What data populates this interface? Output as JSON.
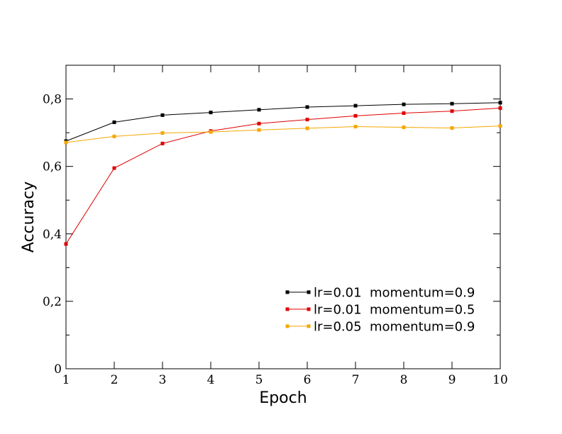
{
  "chart_data": {
    "type": "line",
    "xlabel": "Epoch",
    "ylabel": "Accuracy",
    "xlim": [
      1,
      10
    ],
    "ylim": [
      0,
      0.9
    ],
    "x_ticks": [
      1,
      2,
      3,
      4,
      5,
      6,
      7,
      8,
      9,
      10
    ],
    "x_tick_labels": [
      "1",
      "2",
      "3",
      "4",
      "5",
      "6",
      "7",
      "8",
      "9",
      "10"
    ],
    "y_ticks": [
      0,
      0.2,
      0.4,
      0.6,
      0.8
    ],
    "y_tick_labels": [
      "0",
      "0,2",
      "0,4",
      "0,6",
      "0,8"
    ],
    "grid": false,
    "legend_position": "bottom-right",
    "x": [
      1,
      2,
      3,
      4,
      5,
      6,
      7,
      8,
      9,
      10
    ],
    "series": [
      {
        "name": "lr=0.01  momentum=0.9",
        "color": "#000000",
        "values": [
          0.675,
          0.731,
          0.752,
          0.76,
          0.768,
          0.776,
          0.78,
          0.784,
          0.786,
          0.789
        ]
      },
      {
        "name": "lr=0.01  momentum=0.5",
        "color": "#e00000",
        "values": [
          0.37,
          0.595,
          0.668,
          0.705,
          0.727,
          0.739,
          0.75,
          0.758,
          0.764,
          0.773
        ]
      },
      {
        "name": "lr=0.05  momentum=0.9",
        "color": "#f5a700",
        "values": [
          0.671,
          0.689,
          0.699,
          0.702,
          0.708,
          0.713,
          0.718,
          0.716,
          0.714,
          0.72
        ]
      }
    ]
  }
}
